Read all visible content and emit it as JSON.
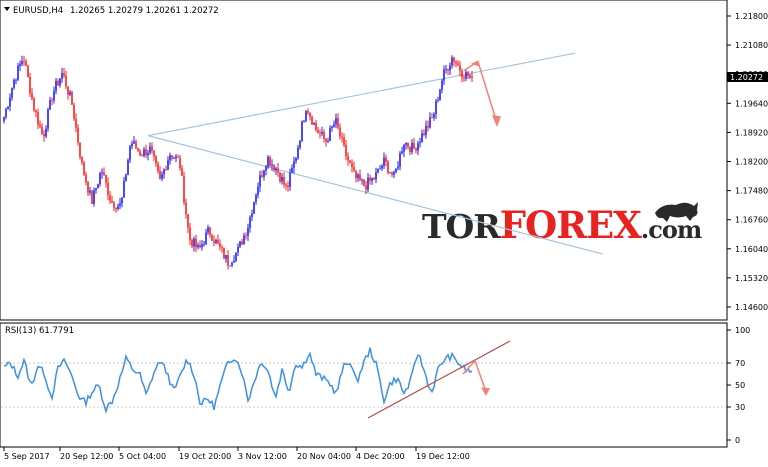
{
  "main_chart": {
    "symbol_label": "EURUSD,H4",
    "ohlc": "1.20265 1.20279 1.20261 1.20272",
    "current_price": "1.20272",
    "price_ticks": [
      "1.21800",
      "1.21080",
      "1.20360",
      "1.19640",
      "1.18920",
      "1.18200",
      "1.17480",
      "1.16760",
      "1.16040",
      "1.15320",
      "1.14600"
    ]
  },
  "rsi_panel": {
    "label": "RSI(13) 61.7791",
    "ticks": [
      "100",
      "70",
      "50",
      "30",
      "0"
    ]
  },
  "time_axis": {
    "labels": [
      "5 Sep 2017",
      "20 Sep 12:00",
      "5 Oct 04:00",
      "19 Oct 20:00",
      "3 Nov 12:00",
      "20 Nov 04:00",
      "4 Dec 20:00",
      "19 Dec 12:00"
    ]
  },
  "watermark": "TORFOREX.com",
  "colors": {
    "bull": "#1c1cff",
    "bear": "#ff1c1c",
    "rsi_line": "#3d8fe8",
    "trendline": "#a8c4dc",
    "arrow": "#f4807c",
    "rsi_trendline": "#b05050"
  },
  "chart_data": [
    {
      "type": "candlestick",
      "title": "EURUSD,H4",
      "ylim": [
        1.146,
        1.218
      ],
      "x_tick_labels": [
        "5 Sep 2017",
        "20 Sep 12:00",
        "5 Oct 04:00",
        "19 Oct 20:00",
        "3 Nov 12:00",
        "20 Nov 04:00",
        "4 Dec 20:00",
        "19 Dec 12:00"
      ],
      "close_path": [
        {
          "x": "5 Sep 2017",
          "y": 1.193
        },
        {
          "x": "7 Sep 2017",
          "y": 1.202
        },
        {
          "x": "8 Sep 2017",
          "y": 1.208
        },
        {
          "x": "12 Sep 2017",
          "y": 1.196
        },
        {
          "x": "14 Sep 2017",
          "y": 1.188
        },
        {
          "x": "17 Sep 2017",
          "y": 1.199
        },
        {
          "x": "20 Sep 2017",
          "y": 1.204
        },
        {
          "x": "22 Sep 2017",
          "y": 1.196
        },
        {
          "x": "25 Sep 2017",
          "y": 1.181
        },
        {
          "x": "27 Sep 2017",
          "y": 1.172
        },
        {
          "x": "29 Sep 2017",
          "y": 1.18
        },
        {
          "x": "3 Oct 2017",
          "y": 1.172
        },
        {
          "x": "5 Oct 2017",
          "y": 1.171
        },
        {
          "x": "6 Oct 2017",
          "y": 1.187
        },
        {
          "x": "10 Oct 2017",
          "y": 1.184
        },
        {
          "x": "12 Oct 2017",
          "y": 1.185
        },
        {
          "x": "13 Oct 2017",
          "y": 1.177
        },
        {
          "x": "16 Oct 2017",
          "y": 1.184
        },
        {
          "x": "19 Oct 2017",
          "y": 1.182
        },
        {
          "x": "20 Oct 2017",
          "y": 1.163
        },
        {
          "x": "24 Oct 2017",
          "y": 1.16
        },
        {
          "x": "26 Oct 2017",
          "y": 1.165
        },
        {
          "x": "30 Oct 2017",
          "y": 1.161
        },
        {
          "x": "3 Nov 2017",
          "y": 1.157
        },
        {
          "x": "5 Nov 2017",
          "y": 1.16
        },
        {
          "x": "8 Nov 2017",
          "y": 1.166
        },
        {
          "x": "12 Nov 2017",
          "y": 1.176
        },
        {
          "x": "14 Nov 2017",
          "y": 1.183
        },
        {
          "x": "17 Nov 2017",
          "y": 1.18
        },
        {
          "x": "20 Nov 2017",
          "y": 1.175
        },
        {
          "x": "22 Nov 2017",
          "y": 1.184
        },
        {
          "x": "24 Nov 2017",
          "y": 1.196
        },
        {
          "x": "27 Nov 2017",
          "y": 1.19
        },
        {
          "x": "30 Nov 2017",
          "y": 1.187
        },
        {
          "x": "1 Dec 2017",
          "y": 1.192
        },
        {
          "x": "3 Dec 2017",
          "y": 1.184
        },
        {
          "x": "5 Dec 2017",
          "y": 1.178
        },
        {
          "x": "7 Dec 2017",
          "y": 1.176
        },
        {
          "x": "11 Dec 2017",
          "y": 1.178
        },
        {
          "x": "12 Dec 2017",
          "y": 1.182
        },
        {
          "x": "14 Dec 2017",
          "y": 1.178
        },
        {
          "x": "16 Dec 2017",
          "y": 1.187
        },
        {
          "x": "18 Dec 2017",
          "y": 1.185
        },
        {
          "x": "20 Dec 2017",
          "y": 1.189
        },
        {
          "x": "22 Dec 2017",
          "y": 1.193
        },
        {
          "x": "25 Dec 2017",
          "y": 1.203
        },
        {
          "x": "26 Dec 2017",
          "y": 1.208
        },
        {
          "x": "27 Dec 2017",
          "y": 1.204
        },
        {
          "x": "28 Dec 2017",
          "y": 1.2027
        }
      ]
    },
    {
      "type": "line",
      "title": "RSI(13) 61.7791",
      "ylim": [
        0,
        100
      ],
      "x_tick_labels": [
        "5 Sep 2017",
        "20 Sep 12:00",
        "5 Oct 04:00",
        "19 Oct 20:00",
        "3 Nov 12:00",
        "20 Nov 04:00",
        "4 Dec 20:00",
        "19 Dec 12:00"
      ],
      "values": [
        66,
        70,
        58,
        72,
        48,
        68,
        60,
        38,
        66,
        72,
        58,
        40,
        34,
        44,
        50,
        28,
        36,
        54,
        74,
        64,
        60,
        40,
        60,
        72,
        62,
        44,
        58,
        74,
        60,
        32,
        38,
        30,
        52,
        70,
        76,
        64,
        36,
        56,
        72,
        62,
        38,
        64,
        44,
        70,
        66,
        80,
        60,
        56,
        52,
        42,
        66,
        72,
        52,
        70,
        82,
        66,
        36,
        52,
        56,
        42,
        54,
        80,
        62,
        42,
        64,
        74,
        76,
        70,
        64,
        62
      ]
    }
  ]
}
